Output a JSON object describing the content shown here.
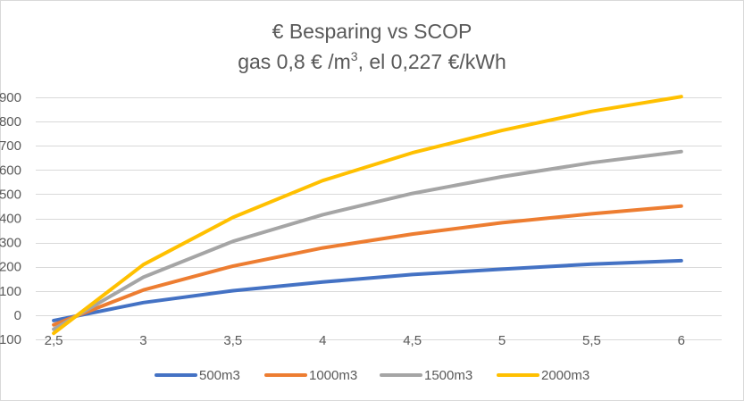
{
  "chart_data": {
    "type": "line",
    "title_line1": "€ Besparing vs SCOP",
    "title_line2_prefix": "gas 0,8 € /m",
    "title_line2_sup": "3",
    "title_line2_suffix": ", el 0,227 €/kWh",
    "xlabel": "",
    "ylabel": "",
    "x": [
      "2,5",
      "3",
      "3,5",
      "4",
      "4,5",
      "5",
      "5,5",
      "6"
    ],
    "x_values": [
      2.5,
      3,
      3.5,
      4,
      4.5,
      5,
      5.5,
      6
    ],
    "ylim": [
      -100,
      900
    ],
    "yticks": [
      "-100",
      "0",
      "100",
      "200",
      "300",
      "400",
      "500",
      "600",
      "700",
      "800",
      "900"
    ],
    "grid": true,
    "legend_position": "bottom",
    "series": [
      {
        "name": "500m3",
        "color": "#4472c4",
        "values": [
          -22,
          52,
          101,
          137,
          168,
          190,
          211,
          225
        ]
      },
      {
        "name": "1000m3",
        "color": "#ed7d31",
        "values": [
          -40,
          104,
          203,
          278,
          335,
          382,
          419,
          451
        ]
      },
      {
        "name": "1500m3",
        "color": "#a5a5a5",
        "values": [
          -58,
          157,
          305,
          415,
          503,
          572,
          630,
          676
        ]
      },
      {
        "name": "2000m3",
        "color": "#ffc000",
        "values": [
          -75,
          209,
          404,
          556,
          671,
          763,
          842,
          903
        ]
      }
    ]
  }
}
